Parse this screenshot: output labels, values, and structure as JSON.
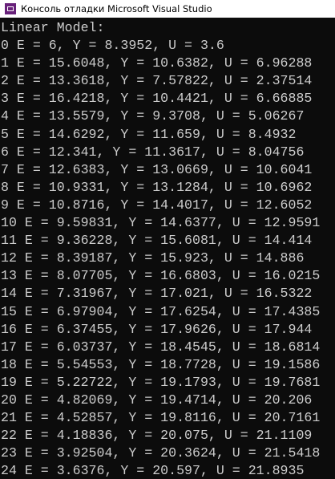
{
  "window": {
    "title": "Консоль отладки Microsoft Visual Studio"
  },
  "console": {
    "lines": [
      "Linear Model:",
      "0 E = 6, Y = 8.3952, U = 3.6",
      "1 E = 15.6048, Y = 10.6382, U = 6.96288",
      "2 E = 13.3618, Y = 7.57822, U = 2.37514",
      "3 E = 16.4218, Y = 10.4421, U = 6.66885",
      "4 E = 13.5579, Y = 9.3708, U = 5.06267",
      "5 E = 14.6292, Y = 11.659, U = 8.4932",
      "6 E = 12.341, Y = 11.3617, U = 8.04756",
      "7 E = 12.6383, Y = 13.0669, U = 10.6041",
      "8 E = 10.9331, Y = 13.1284, U = 10.6962",
      "9 E = 10.8716, Y = 14.4017, U = 12.6052",
      "10 E = 9.59831, Y = 14.6377, U = 12.9591",
      "11 E = 9.36228, Y = 15.6081, U = 14.414",
      "12 E = 8.39187, Y = 15.923, U = 14.886",
      "13 E = 8.07705, Y = 16.6803, U = 16.0215",
      "14 E = 7.31967, Y = 17.021, U = 16.5322",
      "15 E = 6.97904, Y = 17.6254, U = 17.4385",
      "16 E = 6.37455, Y = 17.9626, U = 17.944",
      "17 E = 6.03737, Y = 18.4545, U = 18.6814",
      "18 E = 5.54553, Y = 18.7728, U = 19.1586",
      "19 E = 5.22722, Y = 19.1793, U = 19.7681",
      "20 E = 4.82069, Y = 19.4714, U = 20.206",
      "21 E = 4.52857, Y = 19.8116, U = 20.7161",
      "22 E = 4.18836, Y = 20.075, U = 21.1109",
      "23 E = 3.92504, Y = 20.3624, U = 21.5418",
      "24 E = 3.6376, Y = 20.597, U = 21.8935"
    ]
  }
}
